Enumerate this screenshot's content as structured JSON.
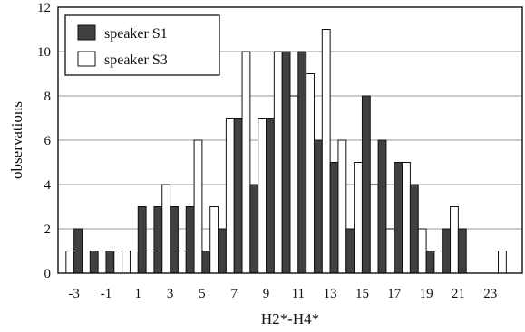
{
  "chart_data": {
    "type": "bar",
    "xlabel": "H2*-H4*",
    "ylabel": "observations",
    "ylim": [
      0,
      12
    ],
    "xlim": [
      -4,
      25
    ],
    "grid": "horizontal",
    "legend_position": "top-left",
    "yticks": [
      "0",
      "2",
      "4",
      "6",
      "8",
      "10",
      "12"
    ],
    "xticks": [
      {
        "value": -3,
        "label": "-3"
      },
      {
        "value": -1,
        "label": "-1"
      },
      {
        "value": 1,
        "label": "1"
      },
      {
        "value": 3,
        "label": "3"
      },
      {
        "value": 5,
        "label": "5"
      },
      {
        "value": 7,
        "label": "7"
      },
      {
        "value": 9,
        "label": "9"
      },
      {
        "value": 11,
        "label": "11"
      },
      {
        "value": 13,
        "label": "13"
      },
      {
        "value": 15,
        "label": "15"
      },
      {
        "value": 17,
        "label": "17"
      },
      {
        "value": 19,
        "label": "19"
      },
      {
        "value": 21,
        "label": "21"
      },
      {
        "value": 23,
        "label": "23"
      }
    ],
    "x": [
      -3,
      -2,
      -1,
      0,
      1,
      2,
      3,
      4,
      5,
      6,
      7,
      8,
      9,
      10,
      11,
      12,
      13,
      14,
      15,
      16,
      17,
      18,
      19,
      20,
      21,
      22,
      23,
      24
    ],
    "series": [
      {
        "name": "speaker S1",
        "color": "#404040",
        "values": [
          2,
          1,
          1,
          0,
          3,
          3,
          3,
          3,
          1,
          2,
          7,
          4,
          7,
          10,
          10,
          6,
          5,
          2,
          8,
          6,
          5,
          4,
          1,
          2,
          2,
          0,
          0,
          0
        ]
      },
      {
        "name": "speaker S3",
        "color": "#ffffff",
        "values": [
          1,
          0,
          0,
          1,
          1,
          1,
          4,
          1,
          6,
          3,
          7,
          10,
          7,
          10,
          8,
          9,
          11,
          6,
          5,
          4,
          2,
          5,
          2,
          1,
          3,
          0,
          0,
          1
        ]
      }
    ]
  }
}
